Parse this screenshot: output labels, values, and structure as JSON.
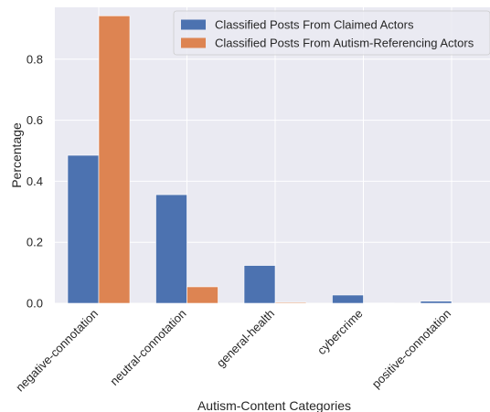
{
  "chart_data": {
    "type": "bar",
    "title": "",
    "xlabel": "Autism-Content Categories",
    "ylabel": "Percentage",
    "categories": [
      "negative-connotation",
      "neutral-connotation",
      "general-health",
      "cybercrime",
      "positive-connotation"
    ],
    "series": [
      {
        "name": "Classified Posts From Claimed Actors",
        "values": [
          0.485,
          0.356,
          0.124,
          0.027,
          0.007
        ],
        "color": "#4c72b0"
      },
      {
        "name": "Classified Posts From Autism-Referencing Actors",
        "values": [
          0.942,
          0.054,
          0.003,
          0.001,
          0.0
        ],
        "color": "#dd8452"
      }
    ],
    "ylim": [
      0,
      0.97
    ],
    "yticks": [
      0.0,
      0.2,
      0.4,
      0.6,
      0.8
    ],
    "ytick_labels": [
      "0.0",
      "0.2",
      "0.4",
      "0.6",
      "0.8"
    ],
    "grid": true,
    "legend_position": "top-right",
    "plot_background": "#eaeaf2",
    "grid_color": "#ffffff"
  }
}
